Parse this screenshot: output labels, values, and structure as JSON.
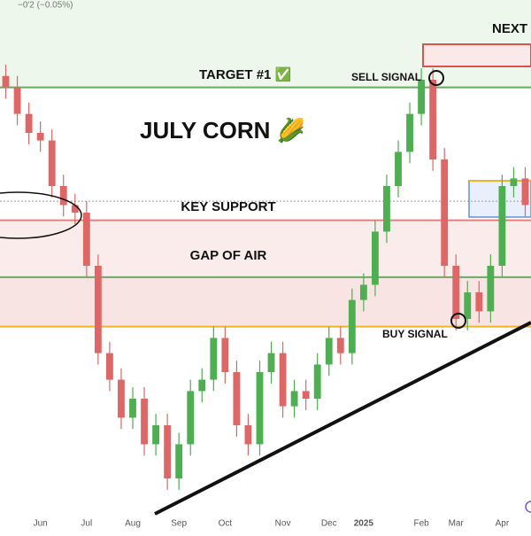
{
  "chart_data": {
    "type": "candlestick",
    "title": "JULY CORN 🌽",
    "header_text": "−0'2 (−0.05%)",
    "annotations": {
      "target": "TARGET #1 ✅",
      "sell": "SELL SIGNAL",
      "buy": "BUY SIGNAL",
      "support": "KEY SUPPORT",
      "gap": "GAP OF AIR",
      "next": "NEXT"
    },
    "categories": [
      null,
      null,
      null,
      "Jun",
      null,
      null,
      null,
      "Jul",
      null,
      null,
      null,
      "Aug",
      null,
      null,
      null,
      "Sep",
      null,
      null,
      null,
      "Oct",
      null,
      null,
      null,
      null,
      "Nov",
      null,
      null,
      null,
      "Dec",
      null,
      null,
      "2025",
      null,
      null,
      null,
      null,
      "Feb",
      null,
      null,
      "Mar",
      null,
      null,
      null,
      "Apr",
      null,
      null
    ],
    "series": [
      {
        "name": "open",
        "values": [
          500,
          497,
          490,
          485,
          483,
          471,
          466,
          464,
          450,
          427,
          420,
          410,
          415,
          403,
          408,
          394,
          403,
          417,
          420,
          431,
          422,
          408,
          403,
          422,
          427,
          413,
          417,
          415,
          424,
          431,
          427,
          441,
          445,
          459,
          471,
          480,
          490,
          499,
          478,
          450,
          436,
          443,
          438,
          450,
          471,
          473
        ]
      },
      {
        "name": "high",
        "values": [
          503,
          500,
          493,
          488,
          486,
          474,
          469,
          467,
          453,
          430,
          423,
          418,
          418,
          411,
          411,
          406,
          420,
          423,
          434,
          434,
          425,
          411,
          425,
          430,
          430,
          420,
          420,
          427,
          434,
          434,
          444,
          448,
          462,
          474,
          483,
          493,
          502,
          502,
          481,
          453,
          446,
          446,
          453,
          474,
          476,
          476
        ]
      },
      {
        "name": "low",
        "values": [
          494,
          487,
          482,
          480,
          468,
          463,
          461,
          447,
          424,
          417,
          407,
          407,
          400,
          400,
          391,
          391,
          400,
          414,
          417,
          419,
          405,
          400,
          400,
          419,
          410,
          410,
          412,
          412,
          421,
          424,
          424,
          438,
          442,
          456,
          468,
          477,
          487,
          475,
          447,
          433,
          433,
          435,
          435,
          447,
          468,
          463
        ]
      },
      {
        "name": "close",
        "values": [
          497,
          490,
          485,
          483,
          471,
          466,
          464,
          450,
          427,
          420,
          410,
          415,
          403,
          408,
          394,
          403,
          417,
          420,
          431,
          422,
          408,
          403,
          422,
          427,
          413,
          417,
          415,
          424,
          431,
          427,
          441,
          445,
          459,
          471,
          480,
          490,
          499,
          478,
          450,
          436,
          443,
          438,
          450,
          471,
          473,
          466
        ]
      }
    ],
    "up_color": "#4caf50",
    "down_color": "#e06666",
    "levels": [
      {
        "value": 497,
        "color": "#6aaa64",
        "dash": false
      },
      {
        "value": 467,
        "color": "#999999",
        "dash": true
      },
      {
        "value": 462,
        "color": "#e08080",
        "dash": false
      },
      {
        "value": 447,
        "color": "#6aaa64",
        "dash": false
      },
      {
        "value": 434,
        "color": "#f0b429",
        "dash": false
      }
    ],
    "ylim": [
      380,
      520
    ]
  }
}
